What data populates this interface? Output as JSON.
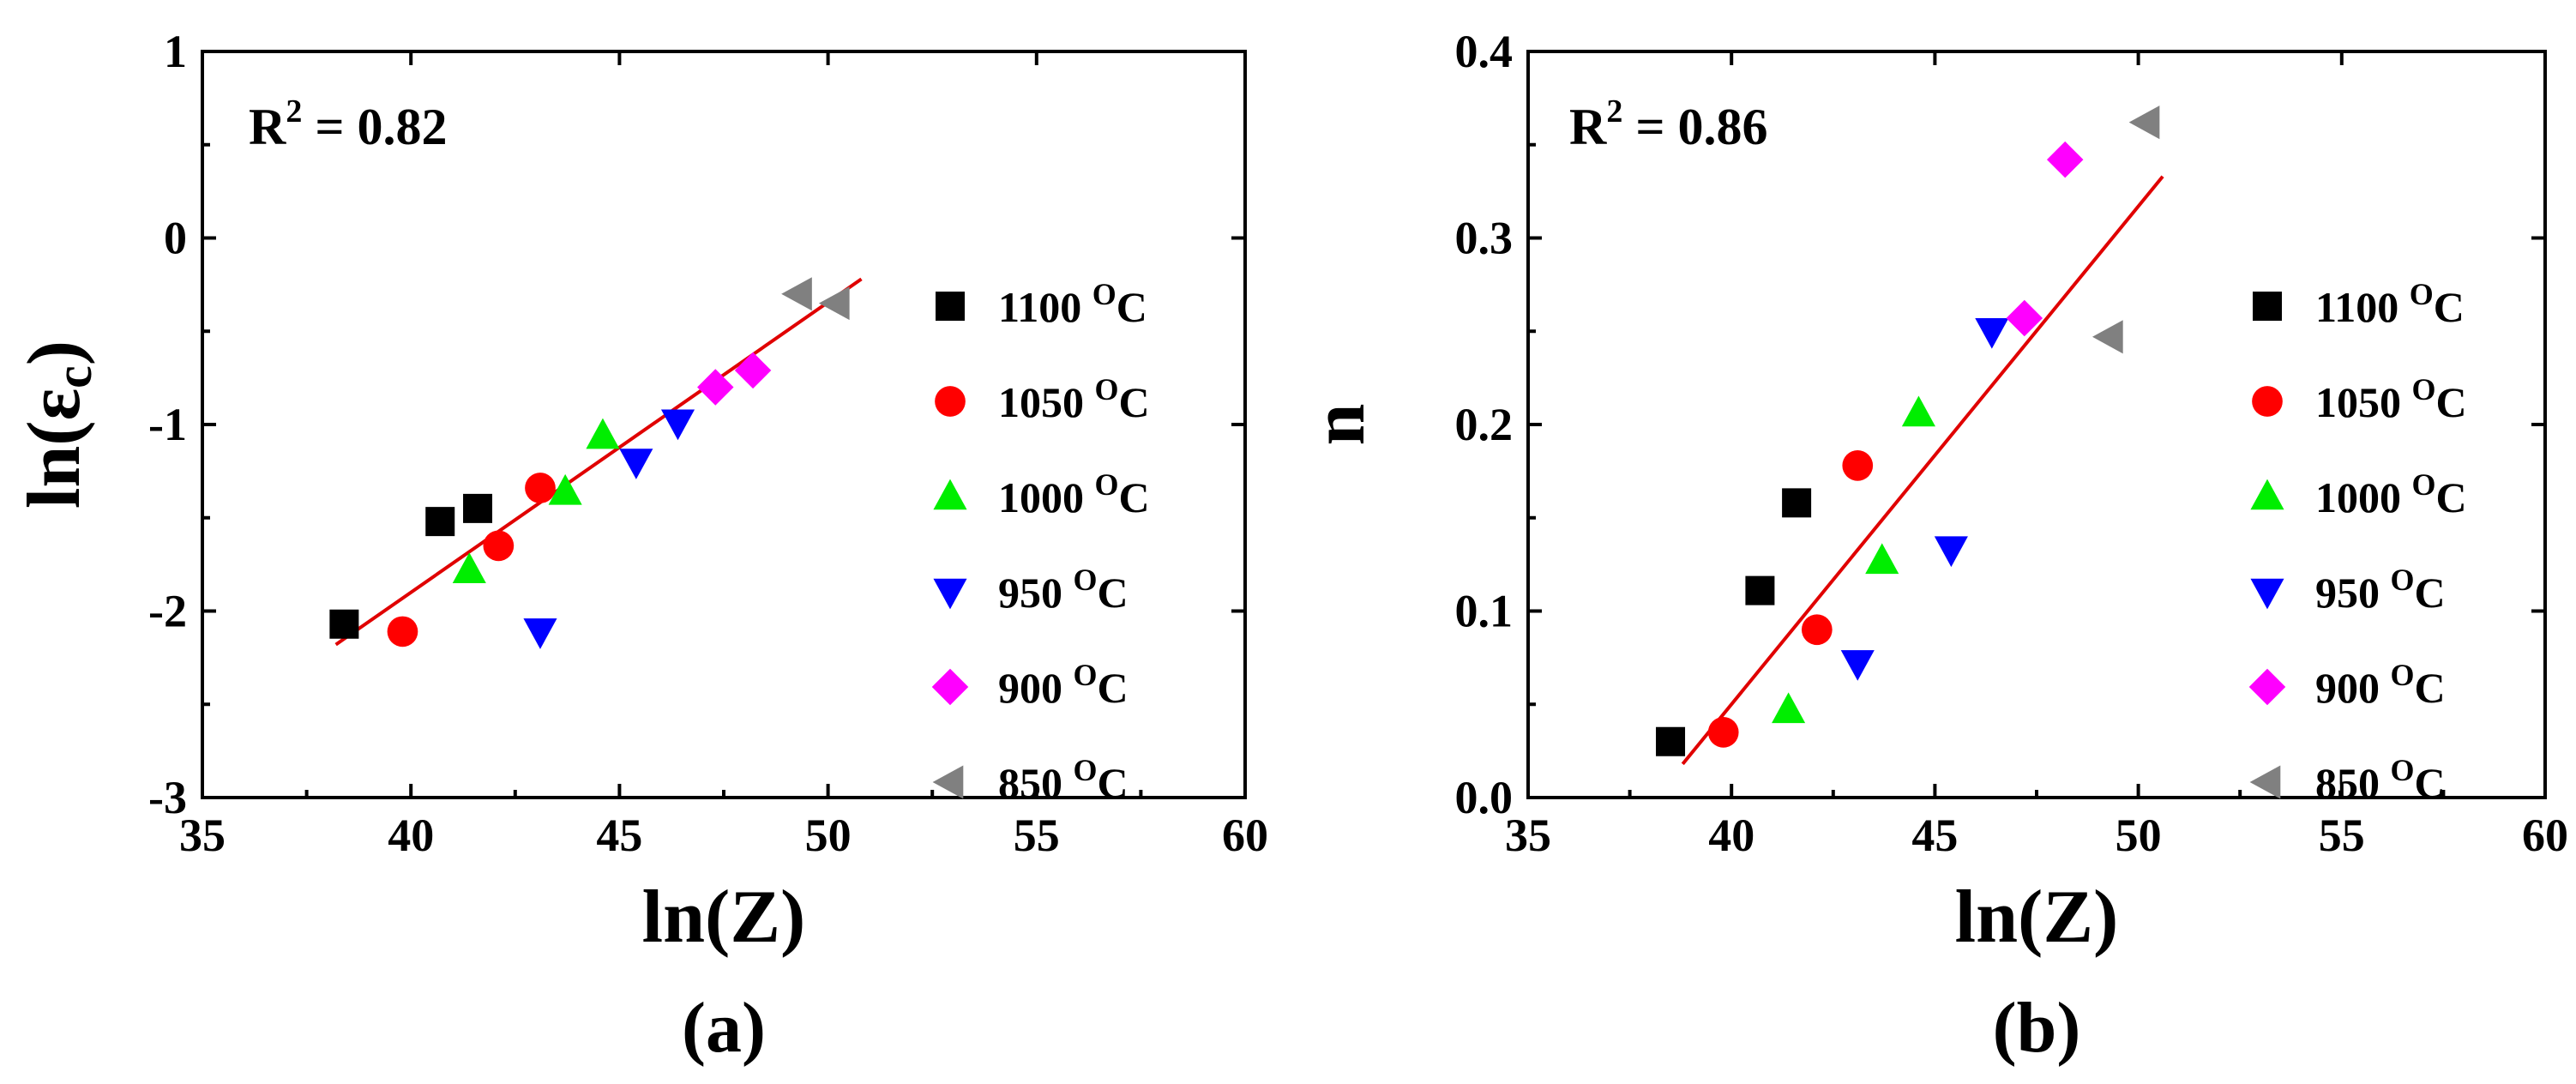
{
  "chart_data": [
    {
      "type": "scatter",
      "panel_label": "(a)",
      "title": "",
      "xlabel": "ln(Z)",
      "ylabel_main": "ln(ε",
      "ylabel_sub": "c",
      "ylabel_close": ")",
      "r2_prefix": "R",
      "r2_sup": "2",
      "r2_value": " = 0.82",
      "xlim": [
        35,
        60
      ],
      "ylim": [
        -3,
        1
      ],
      "xticks": [
        35,
        40,
        45,
        50,
        55,
        60
      ],
      "yticks": [
        -3,
        -2,
        -1,
        0,
        1
      ],
      "ytick_labels": [
        "-3",
        "-2",
        "-1",
        "0",
        "1"
      ],
      "xtick_labels": [
        "35",
        "40",
        "45",
        "50",
        "55",
        "60"
      ],
      "fit_line": {
        "x": [
          38.2,
          50.8
        ],
        "y": [
          -2.18,
          -0.22
        ],
        "color": "#e00000"
      },
      "series": [
        {
          "name": "1100",
          "unit_sup": "O",
          "unit": "C",
          "marker": "square",
          "color": "#000000",
          "x": [
            38.4,
            40.7,
            41.6
          ],
          "y": [
            -2.07,
            -1.52,
            -1.45
          ]
        },
        {
          "name": "1050",
          "unit_sup": "O",
          "unit": "C",
          "marker": "circle",
          "color": "#ff0000",
          "x": [
            39.8,
            42.1,
            43.1
          ],
          "y": [
            -2.11,
            -1.65,
            -1.34
          ]
        },
        {
          "name": "1000",
          "unit_sup": "O",
          "unit": "C",
          "marker": "triangle-up",
          "color": "#00ee00",
          "x": [
            41.4,
            43.7,
            44.6
          ],
          "y": [
            -1.78,
            -1.36,
            -1.06
          ]
        },
        {
          "name": "950",
          "unit_sup": "O",
          "unit": "C",
          "marker": "triangle-down",
          "color": "#0000ff",
          "x": [
            43.1,
            45.4,
            46.4
          ],
          "y": [
            -2.11,
            -1.2,
            -0.99
          ]
        },
        {
          "name": "900",
          "unit_sup": "O",
          "unit": "C",
          "marker": "diamond",
          "color": "#ff00ff",
          "x": [
            47.3,
            48.2
          ],
          "y": [
            -0.8,
            -0.71
          ]
        },
        {
          "name": "850",
          "unit_sup": "O",
          "unit": "C",
          "marker": "triangle-left",
          "color": "#808080",
          "x": [
            49.3,
            50.2
          ],
          "y": [
            -0.3,
            -0.35
          ]
        }
      ]
    },
    {
      "type": "scatter",
      "panel_label": "(b)",
      "title": "",
      "xlabel": "ln(Z)",
      "ylabel": "n",
      "r2_prefix": "R",
      "r2_sup": "2",
      "r2_value": " = 0.86",
      "xlim": [
        35,
        60
      ],
      "ylim": [
        0.0,
        0.4
      ],
      "xticks": [
        35,
        40,
        45,
        50,
        55,
        60
      ],
      "yticks": [
        0.0,
        0.1,
        0.2,
        0.3,
        0.4
      ],
      "ytick_labels": [
        "0.0",
        "0.1",
        "0.2",
        "0.3",
        "0.4"
      ],
      "xtick_labels": [
        "35",
        "40",
        "45",
        "50",
        "55",
        "60"
      ],
      "fit_line": {
        "x": [
          38.8,
          50.6
        ],
        "y": [
          0.018,
          0.333
        ],
        "color": "#e00000"
      },
      "series": [
        {
          "name": "1100",
          "unit_sup": "O",
          "unit": "C",
          "marker": "square",
          "color": "#000000",
          "x": [
            38.5,
            40.7,
            41.6
          ],
          "y": [
            0.03,
            0.111,
            0.158
          ]
        },
        {
          "name": "1050",
          "unit_sup": "O",
          "unit": "C",
          "marker": "circle",
          "color": "#ff0000",
          "x": [
            39.8,
            42.1,
            43.1
          ],
          "y": [
            0.035,
            0.09,
            0.178
          ]
        },
        {
          "name": "1000",
          "unit_sup": "O",
          "unit": "C",
          "marker": "triangle-up",
          "color": "#00ee00",
          "x": [
            41.4,
            43.7,
            44.6
          ],
          "y": [
            0.047,
            0.127,
            0.206
          ]
        },
        {
          "name": "950",
          "unit_sup": "O",
          "unit": "C",
          "marker": "triangle-down",
          "color": "#0000ff",
          "x": [
            43.1,
            45.4,
            46.4
          ],
          "y": [
            0.072,
            0.133,
            0.25
          ]
        },
        {
          "name": "900",
          "unit_sup": "O",
          "unit": "C",
          "marker": "diamond",
          "color": "#ff00ff",
          "x": [
            47.2,
            48.2
          ],
          "y": [
            0.257,
            0.342
          ]
        },
        {
          "name": "850",
          "unit_sup": "O",
          "unit": "C",
          "marker": "triangle-left",
          "color": "#808080",
          "x": [
            49.3,
            50.2
          ],
          "y": [
            0.247,
            0.362
          ]
        }
      ]
    }
  ]
}
